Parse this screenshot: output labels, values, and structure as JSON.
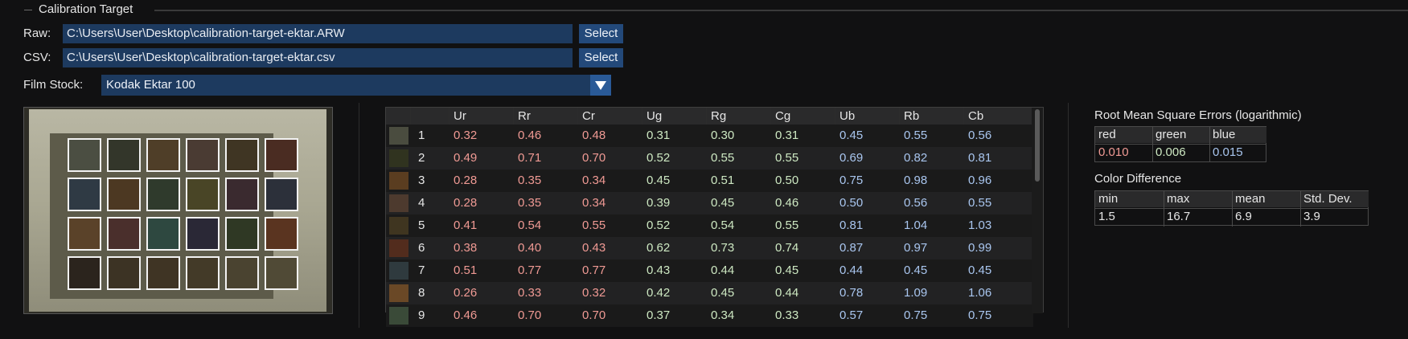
{
  "group": {
    "title": "Calibration Target"
  },
  "raw": {
    "label": "Raw:",
    "value": "C:\\Users\\User\\Desktop\\calibration-target-ektar.ARW",
    "button": "Select"
  },
  "csv": {
    "label": "CSV:",
    "value": "C:\\Users\\User\\Desktop\\calibration-target-ektar.csv",
    "button": "Select"
  },
  "film": {
    "label": "Film Stock:",
    "value": "Kodak Ektar 100"
  },
  "target_patches": [
    [
      "#4b4e42",
      "#33362a",
      "#4f3e28",
      "#4a3b33",
      "#3f3523",
      "#4a2c22"
    ],
    [
      "#2f3a44",
      "#4c3822",
      "#2f3a2c",
      "#494526",
      "#3a2a2f",
      "#2c303a"
    ],
    [
      "#5a4229",
      "#4a2f2c",
      "#2e4840",
      "#2a2836",
      "#2f3824",
      "#5a3420"
    ],
    [
      "#2b241d",
      "#3c3324",
      "#3f3424",
      "#433a28",
      "#4a4330",
      "#504a36"
    ]
  ],
  "table": {
    "headers": [
      "Ur",
      "Rr",
      "Cr",
      "Ug",
      "Rg",
      "Cg",
      "Ub",
      "Rb",
      "Cb"
    ],
    "rows": [
      {
        "idx": "1",
        "swatch": "#4a4c3f",
        "vals": [
          "0.32",
          "0.46",
          "0.48",
          "0.31",
          "0.30",
          "0.31",
          "0.45",
          "0.55",
          "0.56"
        ]
      },
      {
        "idx": "2",
        "swatch": "#30331f",
        "vals": [
          "0.49",
          "0.71",
          "0.70",
          "0.52",
          "0.55",
          "0.55",
          "0.69",
          "0.82",
          "0.81"
        ]
      },
      {
        "idx": "3",
        "swatch": "#5a3d20",
        "vals": [
          "0.28",
          "0.35",
          "0.34",
          "0.45",
          "0.51",
          "0.50",
          "0.75",
          "0.98",
          "0.96"
        ]
      },
      {
        "idx": "4",
        "swatch": "#4d3a2e",
        "vals": [
          "0.28",
          "0.35",
          "0.34",
          "0.39",
          "0.45",
          "0.46",
          "0.50",
          "0.56",
          "0.55"
        ]
      },
      {
        "idx": "5",
        "swatch": "#3f3520",
        "vals": [
          "0.41",
          "0.54",
          "0.55",
          "0.52",
          "0.54",
          "0.55",
          "0.81",
          "1.04",
          "1.03"
        ]
      },
      {
        "idx": "6",
        "swatch": "#522c1d",
        "vals": [
          "0.38",
          "0.40",
          "0.43",
          "0.62",
          "0.73",
          "0.74",
          "0.87",
          "0.97",
          "0.99"
        ]
      },
      {
        "idx": "7",
        "swatch": "#2f3a3e",
        "vals": [
          "0.51",
          "0.77",
          "0.77",
          "0.43",
          "0.44",
          "0.45",
          "0.44",
          "0.45",
          "0.45"
        ]
      },
      {
        "idx": "8",
        "swatch": "#6a4826",
        "vals": [
          "0.26",
          "0.33",
          "0.32",
          "0.42",
          "0.45",
          "0.44",
          "0.78",
          "1.09",
          "1.06"
        ]
      },
      {
        "idx": "9",
        "swatch": "#3a4a38",
        "vals": [
          "0.46",
          "0.70",
          "0.70",
          "0.37",
          "0.34",
          "0.33",
          "0.57",
          "0.75",
          "0.75"
        ]
      }
    ]
  },
  "rmse": {
    "title": "Root Mean Square Errors (logarithmic)",
    "headers": [
      "red",
      "green",
      "blue"
    ],
    "values": [
      "0.010",
      "0.006",
      "0.015"
    ]
  },
  "color_diff": {
    "title": "Color Difference",
    "headers": [
      "min",
      "max",
      "mean",
      "Std. Dev."
    ],
    "values": [
      "1.5",
      "16.7",
      "6.9",
      "3.9"
    ]
  },
  "colors": {
    "accent": "#1d3a5f",
    "button": "#23497a",
    "red_text": "#f09a94",
    "green_text": "#cde8c2",
    "blue_text": "#a9c6ef"
  }
}
